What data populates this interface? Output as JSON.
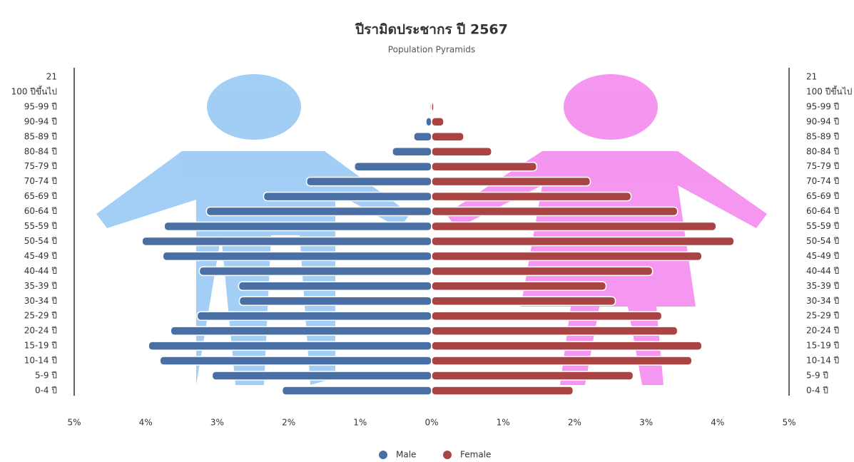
{
  "chart_data": {
    "type": "population-pyramid",
    "title": "ปีรามิดประชากร ปี 2567",
    "subtitle": "Population Pyramids",
    "categories": [
      "21",
      "100 ปีขึ้นไป",
      "95-99 ปี",
      "90-94 ปี",
      "85-89 ปี",
      "80-84 ปี",
      "75-79 ปี",
      "70-74 ปี",
      "65-69 ปี",
      "60-64 ปี",
      "55-59 ปี",
      "50-54 ปี",
      "45-49 ปี",
      "40-44 ปี",
      "35-39 ปี",
      "30-34 ปี",
      "25-29 ปี",
      "20-24 ปี",
      "15-19 ปี",
      "10-14 ปี",
      "5-9 ปี",
      "0-4 ปี"
    ],
    "series": [
      {
        "name": "Male",
        "color": "#4a6fa5",
        "values": [
          0,
          -0.01,
          -0.02,
          -0.08,
          -0.25,
          -0.55,
          -1.08,
          -1.75,
          -2.35,
          -3.15,
          -3.74,
          -4.05,
          -3.76,
          -3.25,
          -2.7,
          -2.69,
          -3.28,
          -3.65,
          -3.96,
          -3.8,
          -3.07,
          -2.09
        ]
      },
      {
        "name": "Female",
        "color": "#a84444",
        "values": [
          0,
          0.01,
          0.03,
          0.17,
          0.45,
          0.84,
          1.47,
          2.22,
          2.79,
          3.44,
          3.98,
          4.23,
          3.78,
          3.09,
          2.44,
          2.57,
          3.22,
          3.44,
          3.78,
          3.64,
          2.82,
          1.98
        ]
      }
    ],
    "xlim": [
      -5,
      5
    ],
    "xticks": [
      {
        "value": -5,
        "label": "5%"
      },
      {
        "value": -4,
        "label": "4%"
      },
      {
        "value": -3,
        "label": "3%"
      },
      {
        "value": -2,
        "label": "2%"
      },
      {
        "value": -1,
        "label": "1%"
      },
      {
        "value": 0,
        "label": "0%"
      },
      {
        "value": 1,
        "label": "1%"
      },
      {
        "value": 2,
        "label": "2%"
      },
      {
        "value": 3,
        "label": "3%"
      },
      {
        "value": 4,
        "label": "4%"
      },
      {
        "value": 5,
        "label": "5%"
      }
    ],
    "legend": "bottom"
  }
}
